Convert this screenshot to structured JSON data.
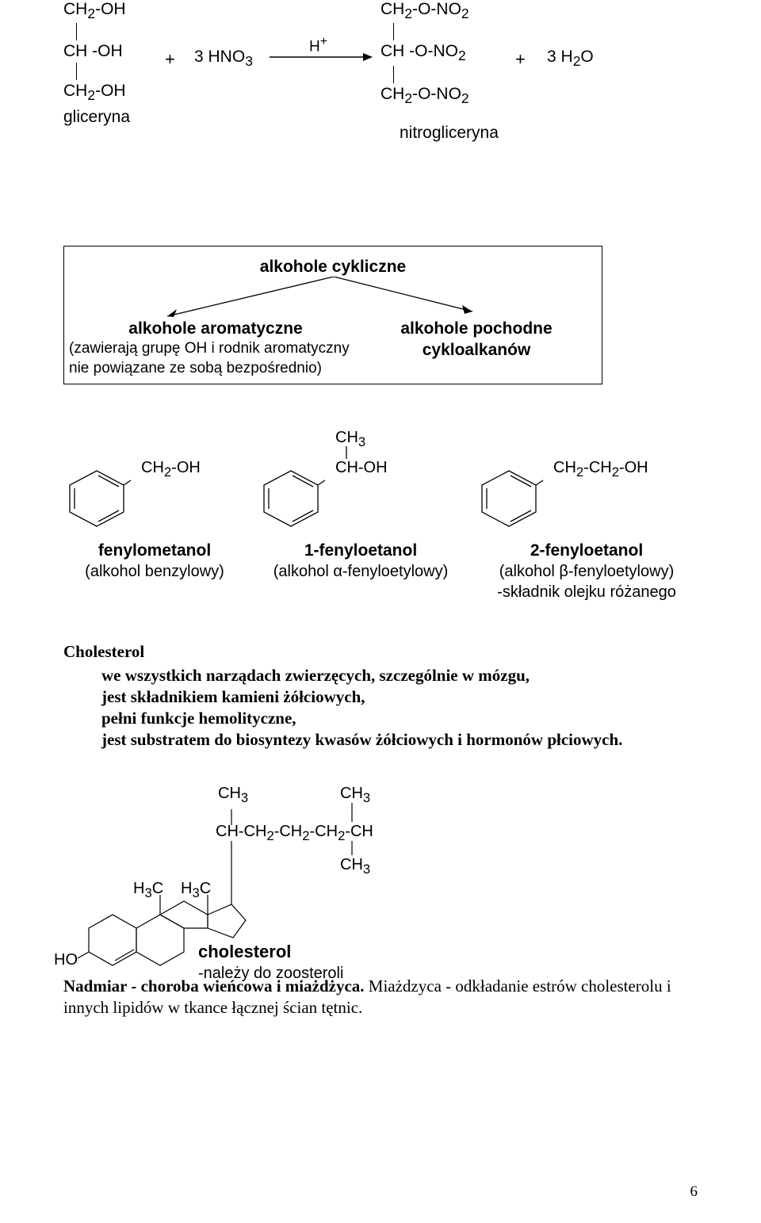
{
  "reaction": {
    "glycerin": {
      "l1": "CH<sub>2</sub>-OH",
      "l2": "CH -OH",
      "l3": "CH<sub>2</sub>-OH",
      "name": "gliceryna"
    },
    "plus1": "+",
    "reagent": "3 HNO<sub>3</sub>",
    "arrow_label": "H<sup>+</sup>",
    "nitro": {
      "l1": "CH<sub>2</sub>-O-NO<sub>2</sub>",
      "l2": "CH -O-NO<sub>2</sub>",
      "l3": "CH<sub>2</sub>-O-NO<sub>2</sub>",
      "name": "nitrogliceryna"
    },
    "plus2": "+",
    "byproduct": "3 H<sub>2</sub>O"
  },
  "diagram": {
    "title": "alkohole cykliczne",
    "left": {
      "bold": "alkohole aromatyczne",
      "l2": "(zawierają grupę OH i rodnik aromatyczny",
      "l3": "nie powiązane ze sobą bezpośrednio)"
    },
    "right": {
      "bold": "alkohole pochodne cykloalkanów"
    }
  },
  "alcohols": {
    "a1": {
      "side": "CH<sub>2</sub>-OH",
      "bold": "fenylometanol",
      "sub": "(alkohol benzylowy)"
    },
    "a2": {
      "top": "CH<sub>3</sub>",
      "side": "CH-OH",
      "bold": "1-fenyloetanol",
      "sub": "(alkohol α-fenyloetylowy)"
    },
    "a3": {
      "side": "CH<sub>2</sub>-CH<sub>2</sub>-OH",
      "bold": "2-fenyloetanol",
      "sub1": "(alkohol β-fenyloetylowy)",
      "sub2": "-składnik olejku różanego"
    }
  },
  "chol": {
    "title": "Cholesterol",
    "b1": "we wszystkich narządach zwierzęcych, szczególnie w mózgu,",
    "b2": "jest składnikiem kamieni żółciowych,",
    "b3": "pełni funkcje hemolityczne,",
    "b4": "jest substratem do biosyntezy kwasów żółciowych i hormonów płciowych.",
    "struct": {
      "ch3a": "CH<sub>3</sub>",
      "ch3b": "CH<sub>3</sub>",
      "chain": "CH-CH<sub>2</sub>-CH<sub>2</sub>-CH<sub>2</sub>-CH",
      "ch3c": "CH<sub>3</sub>",
      "h3c1": "H<sub>3</sub>C",
      "h3c2": "H<sub>3</sub>C",
      "ho": "HO",
      "name": "cholesterol",
      "note": "-należy do zoosteroli"
    }
  },
  "para": {
    "lead": "Nadmiar - choroba wieńcowa i miażdżyca.",
    "rest": " Miażdzyca - odkładanie estrów cholesterolu i innych lipidów w tkance łącznej ścian tętnic."
  },
  "pagenum": "6",
  "colors": {
    "text": "#000000",
    "bg": "#ffffff"
  }
}
